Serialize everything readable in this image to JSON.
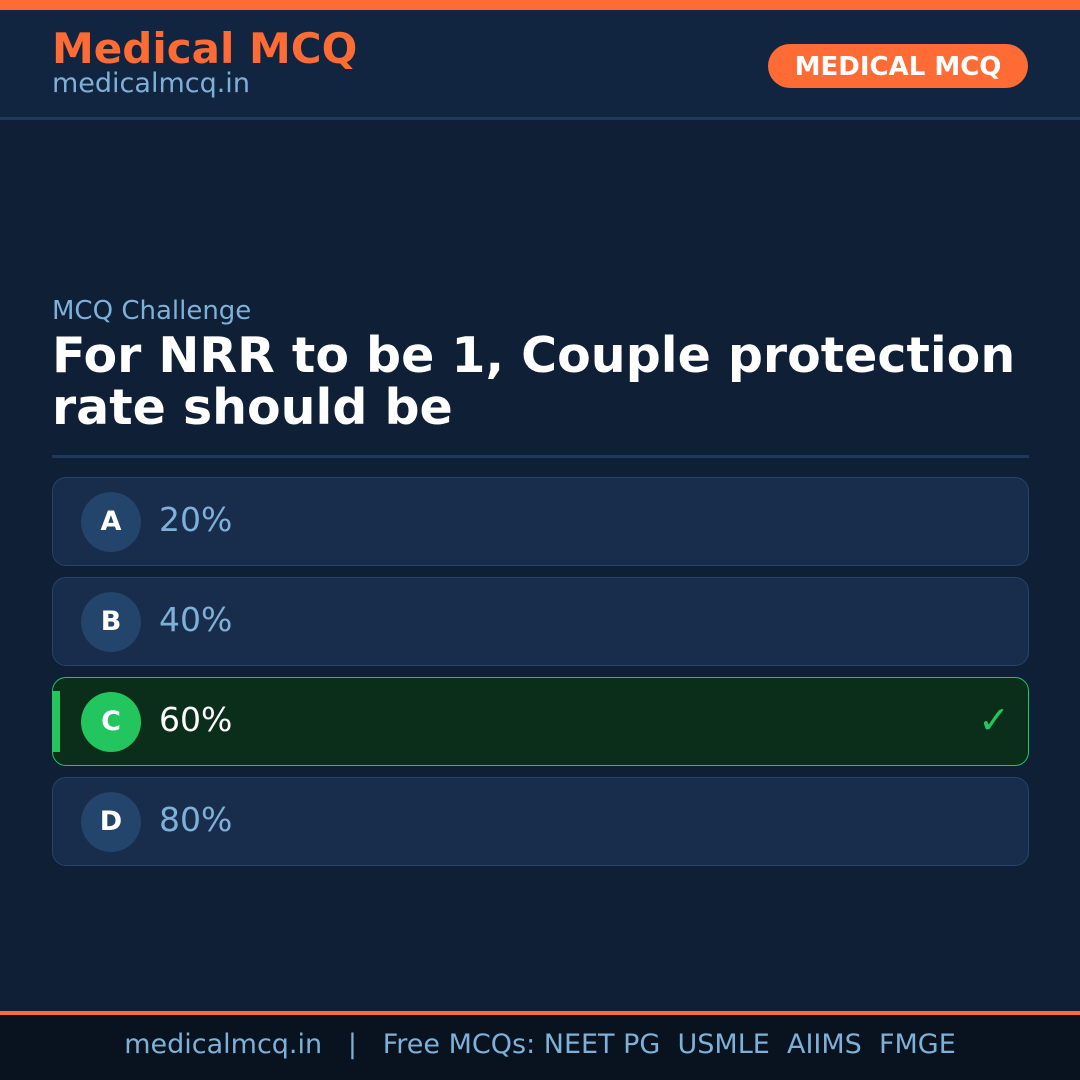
{
  "header": {
    "brand": "Medical MCQ",
    "site": "medicalmcq.in",
    "badge": "MEDICAL MCQ"
  },
  "question": {
    "kicker": "MCQ Challenge",
    "text": "For NRR to be 1, Couple protection rate should be"
  },
  "options": [
    {
      "letter": "A",
      "text": "20%",
      "correct": false
    },
    {
      "letter": "B",
      "text": "40%",
      "correct": false
    },
    {
      "letter": "C",
      "text": "60%",
      "correct": true
    },
    {
      "letter": "D",
      "text": "80%",
      "correct": false
    }
  ],
  "check_icon": "✓",
  "footer": {
    "text": "medicalmcq.in   |   Free MCQs: NEET PG  USMLE  AIIMS  FMGE"
  },
  "colors": {
    "accent": "#ff6b35",
    "correct": "#22c55e",
    "background": "#0e1f36"
  }
}
